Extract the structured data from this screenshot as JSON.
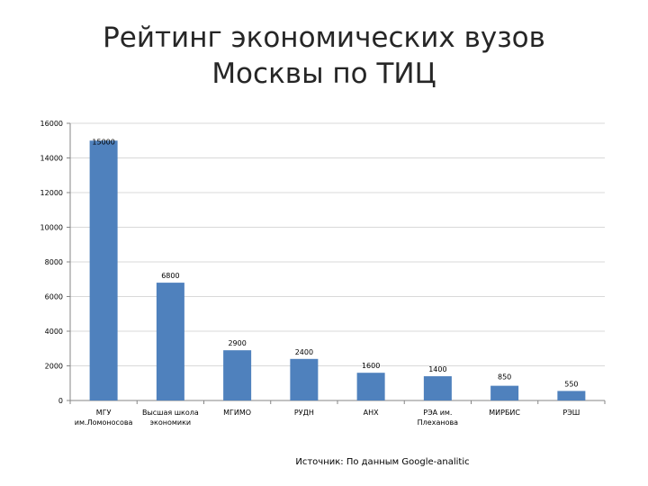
{
  "title_line1": "Рейтинг  экономических вузов",
  "title_line2": "Москвы по ТИЦ",
  "source": "Источник: По данным  Google-analitic",
  "colors": {
    "bar": "#4f81bd",
    "axis": "#868686",
    "grid": "#d9d9d9"
  },
  "chart_data": {
    "type": "bar",
    "categories": [
      [
        "МГУ",
        "им.Ломоносова"
      ],
      [
        "Высшая школа",
        "экономики"
      ],
      [
        "МГИМО"
      ],
      [
        "РУДН"
      ],
      [
        "АНХ"
      ],
      [
        "РЭА им.",
        "Плеханова"
      ],
      [
        "МИРБИС"
      ],
      [
        "РЭШ"
      ]
    ],
    "values": [
      15000,
      6800,
      2900,
      2400,
      1600,
      1400,
      850,
      550
    ],
    "data_labels": [
      "15000",
      "6800",
      "2900",
      "2400",
      "1600",
      "1400",
      "850",
      "550"
    ],
    "y_ticks": [
      "0",
      "2000",
      "4000",
      "6000",
      "8000",
      "10000",
      "12000",
      "14000",
      "16000"
    ],
    "ylim": [
      0,
      16000
    ],
    "grid": true,
    "legend": "none"
  }
}
